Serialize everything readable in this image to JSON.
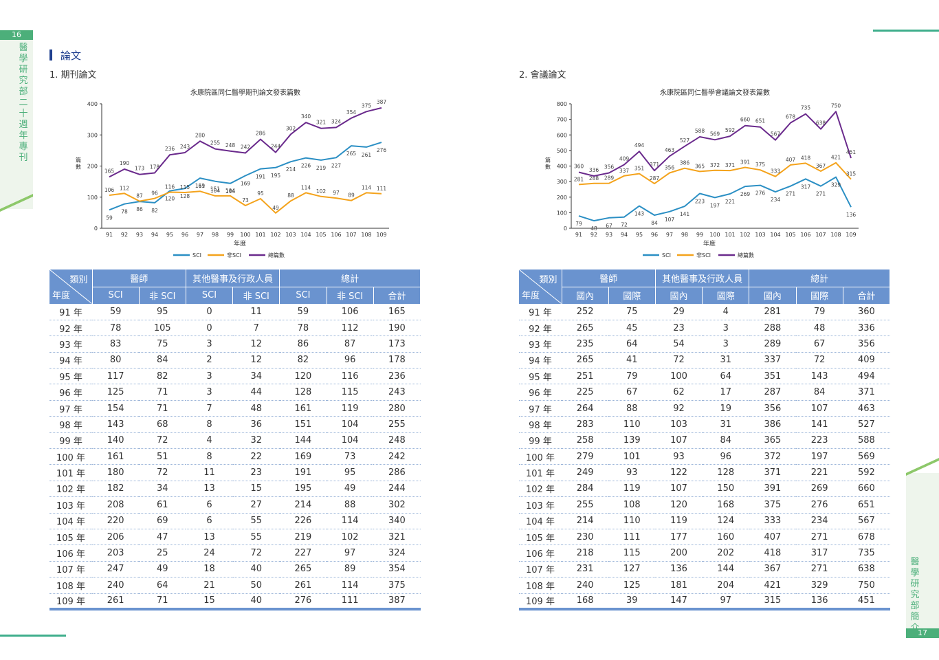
{
  "page": {
    "left_page_number": "16",
    "left_vertical_title": "醫學研究部二十週年專刊",
    "right_page_number": "17",
    "right_vertical_title": "醫學研究部簡介",
    "section_title": "論文",
    "journal_subtitle": "1. 期刊論文",
    "conference_subtitle": "2. 會議論文"
  },
  "colors": {
    "sci": "#2b8fc4",
    "non_sci": "#f4a31c",
    "total": "#6a2a8c",
    "header": "#6a93cf"
  },
  "chart_data": [
    {
      "type": "line",
      "title": "永康院區同仁醫學期刊論文發表篇數",
      "xlabel": "年度",
      "ylabel": "篇數",
      "ylim": [
        0,
        400
      ],
      "yticks": [
        0,
        100,
        200,
        300,
        400
      ],
      "categories": [
        "91",
        "92",
        "93",
        "94",
        "95",
        "96",
        "97",
        "98",
        "99",
        "100",
        "101",
        "102",
        "103",
        "104",
        "105",
        "106",
        "107",
        "108",
        "109"
      ],
      "legend_position": "bottom",
      "series": [
        {
          "name": "SCI",
          "values": [
            59,
            78,
            86,
            82,
            120,
            128,
            161,
            151,
            144,
            169,
            191,
            195,
            214,
            226,
            219,
            227,
            265,
            261,
            276
          ]
        },
        {
          "name": "非SCI",
          "values": [
            106,
            112,
            87,
            96,
            116,
            115,
            119,
            104,
            104,
            73,
            95,
            49,
            88,
            114,
            102,
            97,
            89,
            114,
            111
          ]
        },
        {
          "name": "總篇數",
          "values": [
            165,
            190,
            173,
            178,
            236,
            243,
            280,
            255,
            248,
            242,
            286,
            244,
            302,
            340,
            321,
            324,
            354,
            375,
            387
          ]
        }
      ]
    },
    {
      "type": "line",
      "title": "永康院區同仁醫學會議論文發表篇數",
      "xlabel": "年度",
      "ylabel": "篇數",
      "ylim": [
        0,
        800
      ],
      "yticks": [
        0,
        100,
        200,
        300,
        400,
        500,
        600,
        700,
        800
      ],
      "categories": [
        "91",
        "92",
        "93",
        "94",
        "95",
        "96",
        "97",
        "98",
        "99",
        "100",
        "101",
        "102",
        "103",
        "104",
        "105",
        "106",
        "107",
        "108",
        "109"
      ],
      "legend_position": "bottom",
      "series": [
        {
          "name": "SCI",
          "values": [
            79,
            48,
            67,
            72,
            143,
            84,
            107,
            141,
            223,
            197,
            221,
            269,
            276,
            234,
            271,
            317,
            271,
            329,
            136
          ]
        },
        {
          "name": "非SCI",
          "values": [
            281,
            288,
            289,
            337,
            351,
            287,
            356,
            386,
            365,
            372,
            371,
            391,
            375,
            333,
            407,
            418,
            367,
            421,
            315
          ]
        },
        {
          "name": "總篇數",
          "values": [
            360,
            336,
            356,
            409,
            494,
            371,
            463,
            527,
            588,
            569,
            592,
            660,
            651,
            567,
            678,
            735,
            638,
            750,
            451
          ]
        }
      ]
    }
  ],
  "journal_table": {
    "corner_top": "類別",
    "corner_bottom": "年度",
    "groups": [
      "醫師",
      "其他醫事及行政人員",
      "總計"
    ],
    "subheaders": [
      "SCI",
      "非 SCI",
      "SCI",
      "非 SCI",
      "SCI",
      "非 SCI",
      "合計"
    ],
    "rows": [
      [
        "91 年",
        "59",
        "95",
        "0",
        "11",
        "59",
        "106",
        "165"
      ],
      [
        "92 年",
        "78",
        "105",
        "0",
        "7",
        "78",
        "112",
        "190"
      ],
      [
        "93 年",
        "83",
        "75",
        "3",
        "12",
        "86",
        "87",
        "173"
      ],
      [
        "94 年",
        "80",
        "84",
        "2",
        "12",
        "82",
        "96",
        "178"
      ],
      [
        "95 年",
        "117",
        "82",
        "3",
        "34",
        "120",
        "116",
        "236"
      ],
      [
        "96 年",
        "125",
        "71",
        "3",
        "44",
        "128",
        "115",
        "243"
      ],
      [
        "97 年",
        "154",
        "71",
        "7",
        "48",
        "161",
        "119",
        "280"
      ],
      [
        "98 年",
        "143",
        "68",
        "8",
        "36",
        "151",
        "104",
        "255"
      ],
      [
        "99 年",
        "140",
        "72",
        "4",
        "32",
        "144",
        "104",
        "248"
      ],
      [
        "100 年",
        "161",
        "51",
        "8",
        "22",
        "169",
        "73",
        "242"
      ],
      [
        "101 年",
        "180",
        "72",
        "11",
        "23",
        "191",
        "95",
        "286"
      ],
      [
        "102 年",
        "182",
        "34",
        "13",
        "15",
        "195",
        "49",
        "244"
      ],
      [
        "103 年",
        "208",
        "61",
        "6",
        "27",
        "214",
        "88",
        "302"
      ],
      [
        "104 年",
        "220",
        "69",
        "6",
        "55",
        "226",
        "114",
        "340"
      ],
      [
        "105 年",
        "206",
        "47",
        "13",
        "55",
        "219",
        "102",
        "321"
      ],
      [
        "106 年",
        "203",
        "25",
        "24",
        "72",
        "227",
        "97",
        "324"
      ],
      [
        "107 年",
        "247",
        "49",
        "18",
        "40",
        "265",
        "89",
        "354"
      ],
      [
        "108 年",
        "240",
        "64",
        "21",
        "50",
        "261",
        "114",
        "375"
      ],
      [
        "109 年",
        "261",
        "71",
        "15",
        "40",
        "276",
        "111",
        "387"
      ]
    ]
  },
  "conference_table": {
    "corner_top": "類別",
    "corner_bottom": "年度",
    "groups": [
      "醫師",
      "其他醫事及行政人員",
      "總計"
    ],
    "subheaders": [
      "國內",
      "國際",
      "國內",
      "國際",
      "國內",
      "國際",
      "合計"
    ],
    "rows": [
      [
        "91 年",
        "252",
        "75",
        "29",
        "4",
        "281",
        "79",
        "360"
      ],
      [
        "92 年",
        "265",
        "45",
        "23",
        "3",
        "288",
        "48",
        "336"
      ],
      [
        "93 年",
        "235",
        "64",
        "54",
        "3",
        "289",
        "67",
        "356"
      ],
      [
        "94 年",
        "265",
        "41",
        "72",
        "31",
        "337",
        "72",
        "409"
      ],
      [
        "95 年",
        "251",
        "79",
        "100",
        "64",
        "351",
        "143",
        "494"
      ],
      [
        "96 年",
        "225",
        "67",
        "62",
        "17",
        "287",
        "84",
        "371"
      ],
      [
        "97 年",
        "264",
        "88",
        "92",
        "19",
        "356",
        "107",
        "463"
      ],
      [
        "98 年",
        "283",
        "110",
        "103",
        "31",
        "386",
        "141",
        "527"
      ],
      [
        "99 年",
        "258",
        "139",
        "107",
        "84",
        "365",
        "223",
        "588"
      ],
      [
        "100 年",
        "279",
        "101",
        "93",
        "96",
        "372",
        "197",
        "569"
      ],
      [
        "101 年",
        "249",
        "93",
        "122",
        "128",
        "371",
        "221",
        "592"
      ],
      [
        "102 年",
        "284",
        "119",
        "107",
        "150",
        "391",
        "269",
        "660"
      ],
      [
        "103 年",
        "255",
        "108",
        "120",
        "168",
        "375",
        "276",
        "651"
      ],
      [
        "104 年",
        "214",
        "110",
        "119",
        "124",
        "333",
        "234",
        "567"
      ],
      [
        "105 年",
        "230",
        "111",
        "177",
        "160",
        "407",
        "271",
        "678"
      ],
      [
        "106 年",
        "218",
        "115",
        "200",
        "202",
        "418",
        "317",
        "735"
      ],
      [
        "107 年",
        "231",
        "127",
        "136",
        "144",
        "367",
        "271",
        "638"
      ],
      [
        "108 年",
        "240",
        "125",
        "181",
        "204",
        "421",
        "329",
        "750"
      ],
      [
        "109 年",
        "168",
        "39",
        "147",
        "97",
        "315",
        "136",
        "451"
      ]
    ]
  }
}
